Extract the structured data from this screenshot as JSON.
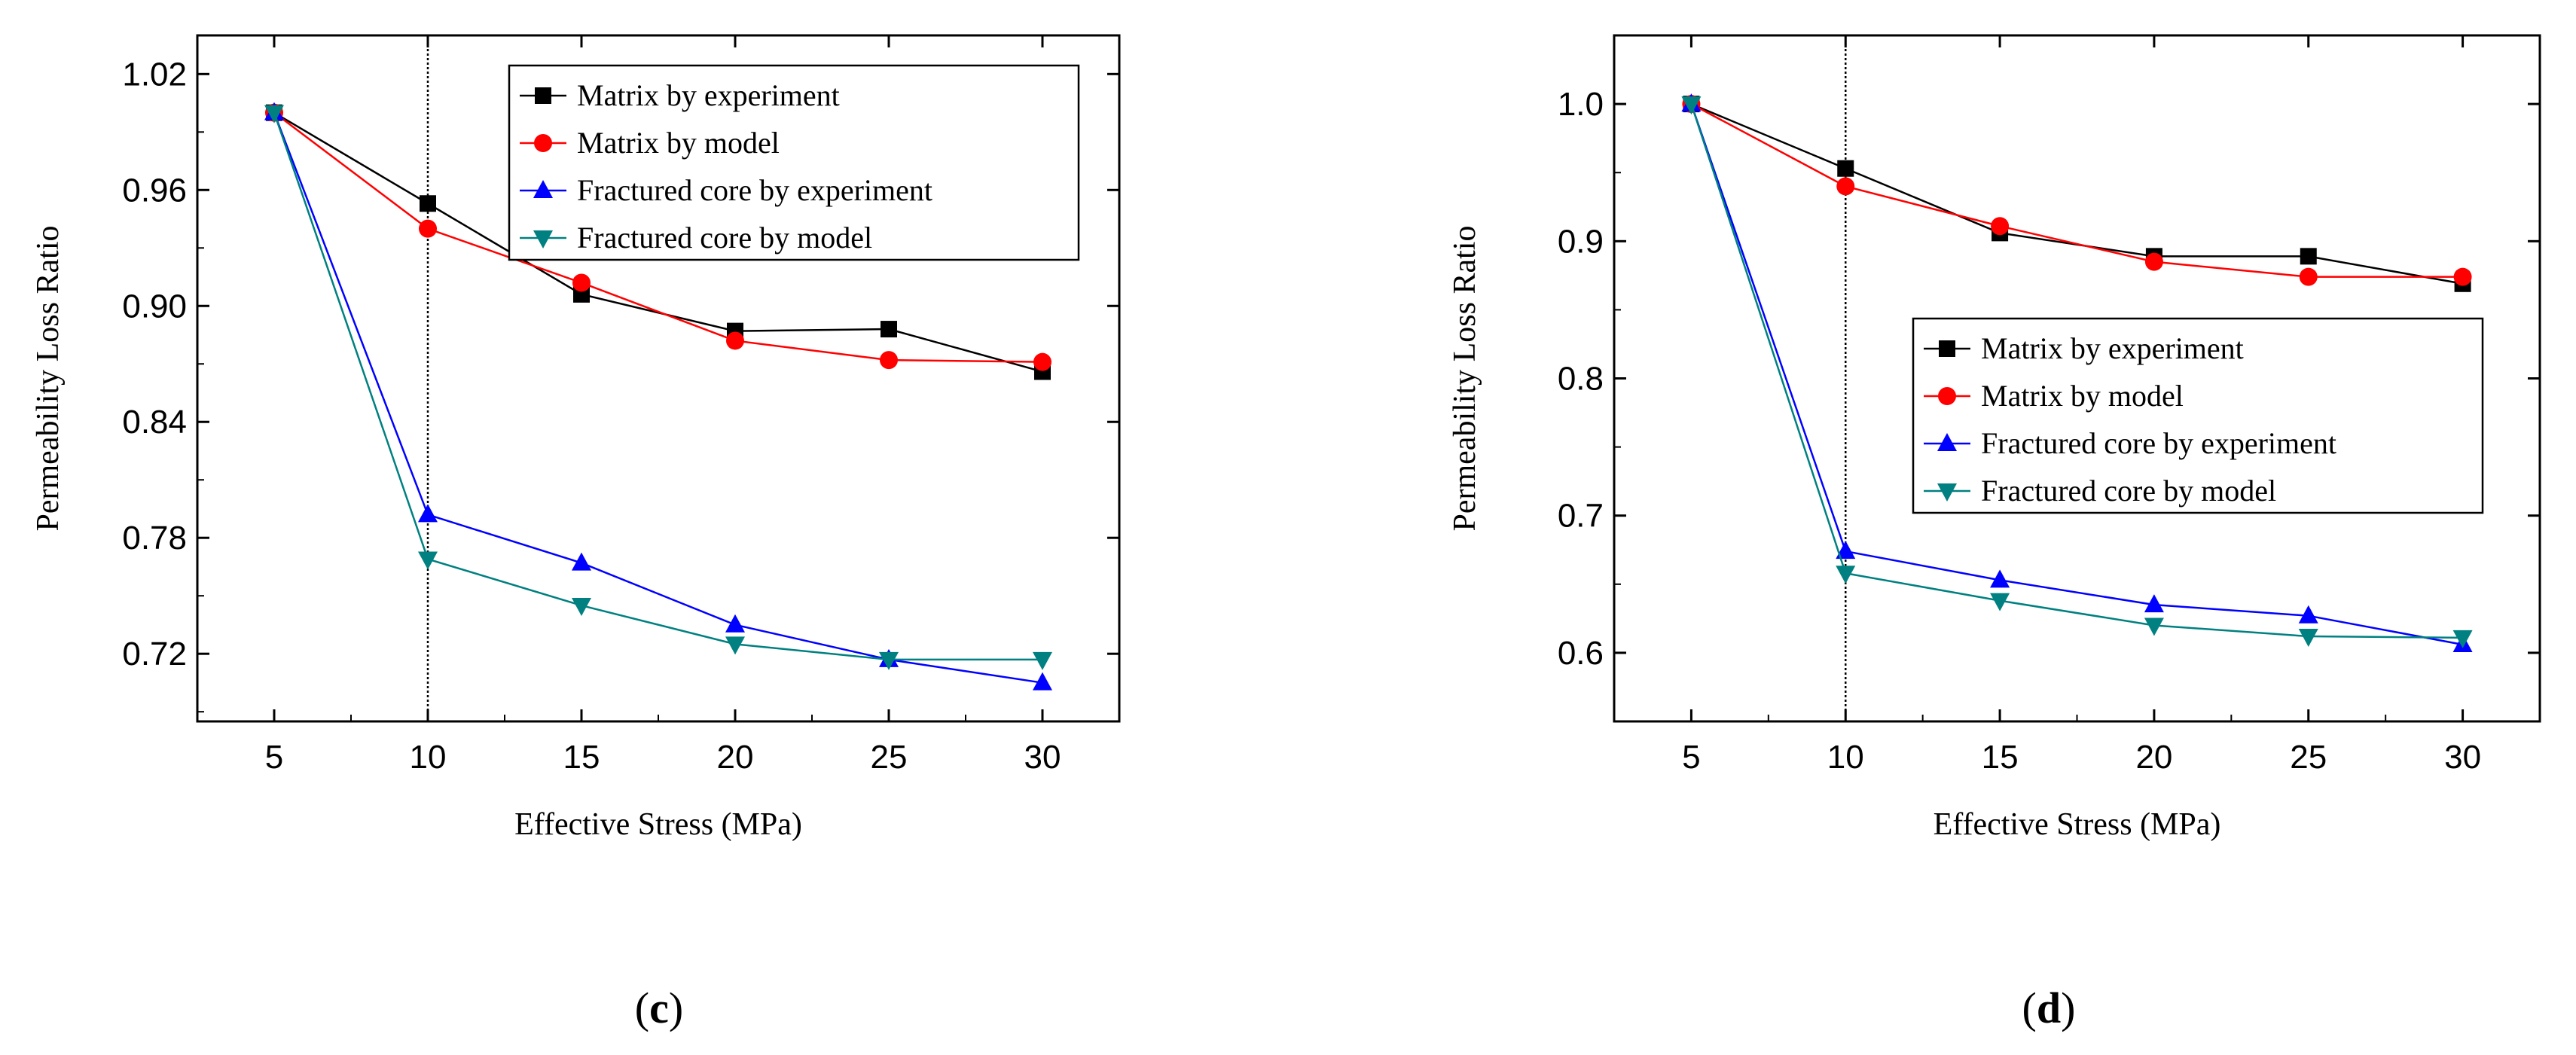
{
  "chart_data": [
    {
      "panel": "c",
      "type": "line",
      "xlabel": "Effective Stress (MPa)",
      "ylabel": "Permeability Loss Ratio",
      "x": [
        5,
        10,
        15,
        20,
        25,
        30
      ],
      "xticks": [
        "5",
        "10",
        "15",
        "20",
        "25",
        "30"
      ],
      "xlim": [
        2.5,
        32.5
      ],
      "ylim": [
        0.685,
        1.04
      ],
      "yticks": [
        "0.72",
        "0.78",
        "0.84",
        "0.90",
        "0.96",
        "1.02"
      ],
      "ytick_values": [
        0.72,
        0.78,
        0.84,
        0.9,
        0.96,
        1.02
      ],
      "vline_x": 10,
      "legend_position": "top-right",
      "series": [
        {
          "name": "Matrix by experiment",
          "color": "#000000",
          "marker": "square",
          "values": [
            1.0,
            0.953,
            0.906,
            0.887,
            0.888,
            0.866
          ]
        },
        {
          "name": "Matrix by model",
          "color": "#ff0000",
          "marker": "circle",
          "values": [
            1.0,
            0.94,
            0.912,
            0.882,
            0.872,
            0.871
          ]
        },
        {
          "name": "Fractured core by experiment",
          "color": "#0000ff",
          "marker": "triangle-up",
          "values": [
            1.0,
            0.792,
            0.767,
            0.735,
            0.717,
            0.705
          ]
        },
        {
          "name": "Fractured core by model",
          "color": "#008080",
          "marker": "triangle-down",
          "values": [
            1.0,
            0.769,
            0.745,
            0.725,
            0.717,
            0.717
          ]
        }
      ]
    },
    {
      "panel": "d",
      "type": "line",
      "xlabel": "Effective Stress (MPa)",
      "ylabel": "Permeability Loss Ratio",
      "x": [
        5,
        10,
        15,
        20,
        25,
        30
      ],
      "xticks": [
        "5",
        "10",
        "15",
        "20",
        "25",
        "30"
      ],
      "xlim": [
        2.5,
        32.5
      ],
      "ylim": [
        0.55,
        1.05
      ],
      "yticks": [
        "0.6",
        "0.7",
        "0.8",
        "0.9",
        "1.0"
      ],
      "ytick_values": [
        0.6,
        0.7,
        0.8,
        0.9,
        1.0
      ],
      "vline_x": 10,
      "legend_position": "center-right",
      "series": [
        {
          "name": "Matrix by experiment",
          "color": "#000000",
          "marker": "square",
          "values": [
            1.0,
            0.953,
            0.906,
            0.889,
            0.889,
            0.869
          ]
        },
        {
          "name": "Matrix by model",
          "color": "#ff0000",
          "marker": "circle",
          "values": [
            1.0,
            0.94,
            0.911,
            0.885,
            0.874,
            0.874
          ]
        },
        {
          "name": "Fractured core by experiment",
          "color": "#0000ff",
          "marker": "triangle-up",
          "values": [
            1.0,
            0.674,
            0.653,
            0.635,
            0.627,
            0.606
          ]
        },
        {
          "name": "Fractured core by model",
          "color": "#008080",
          "marker": "triangle-down",
          "values": [
            1.0,
            0.658,
            0.638,
            0.62,
            0.612,
            0.611
          ]
        }
      ]
    }
  ],
  "captions": {
    "c": {
      "open": "(",
      "letter": "c",
      "close": ")"
    },
    "d": {
      "open": "(",
      "letter": "d",
      "close": ")"
    }
  }
}
